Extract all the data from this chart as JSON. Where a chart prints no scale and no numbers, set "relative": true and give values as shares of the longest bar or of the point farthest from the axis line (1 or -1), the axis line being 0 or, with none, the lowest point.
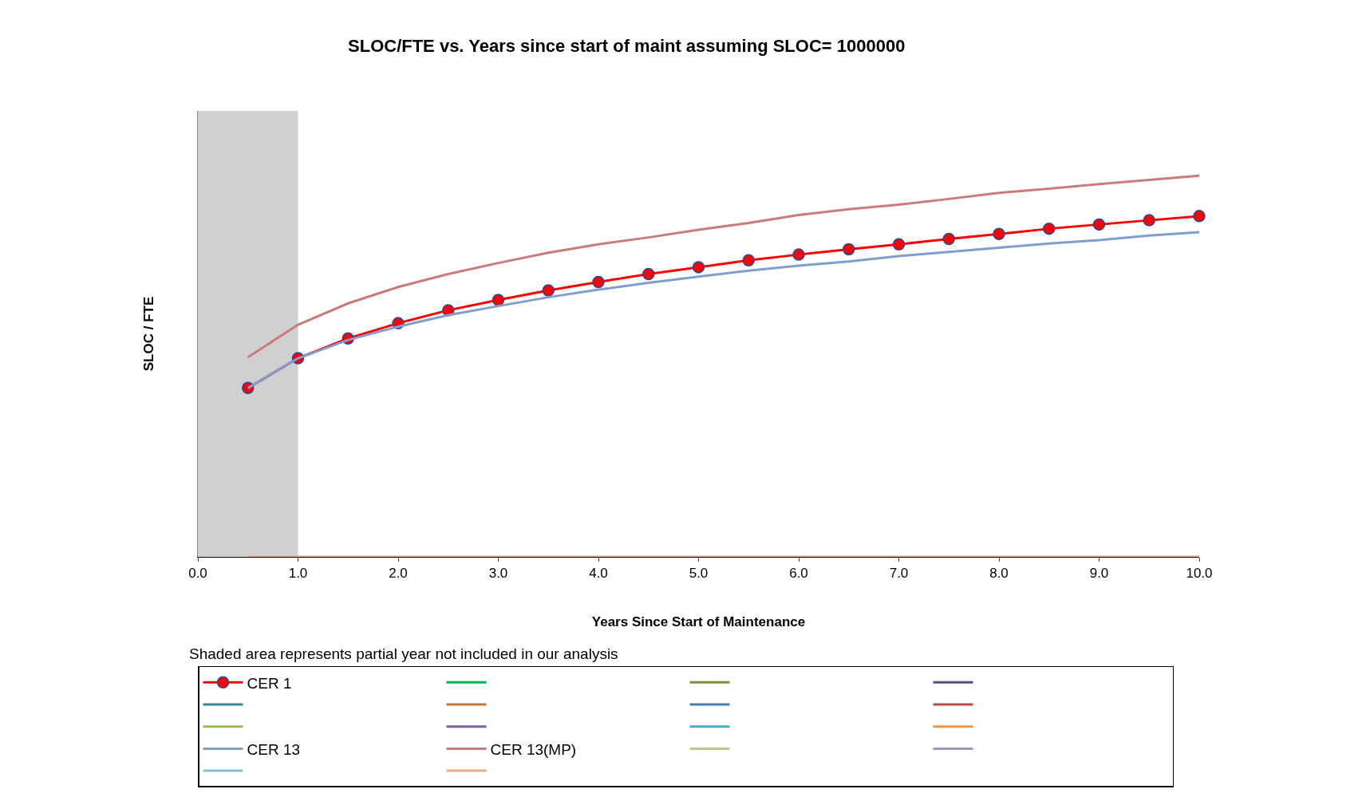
{
  "chart_data": {
    "type": "line",
    "title": "SLOC/FTE vs. Years since start of maint assuming SLOC= 1000000",
    "xlabel": "Years Since Start of Maintenance",
    "ylabel": "SLOC / FTE",
    "annotations": [
      "Shaded area represents partial year not included in our analysis"
    ],
    "relative": true,
    "tick_labels": "x",
    "grid": false,
    "legend": "bottom",
    "x": [
      0.5,
      1.0,
      1.5,
      2.0,
      2.5,
      3.0,
      3.5,
      4.0,
      4.5,
      5.0,
      5.5,
      6.0,
      6.5,
      7.0,
      7.5,
      8.0,
      8.5,
      9.0,
      9.5,
      10.0
    ],
    "xlim": [
      0,
      10
    ],
    "xticks": [
      {
        "value": 0,
        "label": "0.0"
      },
      {
        "value": 1,
        "label": "1.0"
      },
      {
        "value": 2,
        "label": "2.0"
      },
      {
        "value": 3,
        "label": "3.0"
      },
      {
        "value": 4,
        "label": "4.0"
      },
      {
        "value": 5,
        "label": "5.0"
      },
      {
        "value": 6,
        "label": "6.0"
      },
      {
        "value": 7,
        "label": "7.0"
      },
      {
        "value": 8,
        "label": "8.0"
      },
      {
        "value": 9,
        "label": "9.0"
      },
      {
        "value": 10,
        "label": "10.0"
      }
    ],
    "bands": [
      {
        "axis": "x",
        "from": 0,
        "to": 1,
        "color": "#d0d0d0"
      }
    ],
    "series": [
      {
        "name": "CER 1",
        "color": "#ff0000",
        "marker": "circle",
        "values": [
          0.443,
          0.521,
          0.573,
          0.613,
          0.647,
          0.674,
          0.699,
          0.721,
          0.742,
          0.76,
          0.778,
          0.793,
          0.807,
          0.82,
          0.834,
          0.847,
          0.861,
          0.872,
          0.883,
          0.894
        ]
      },
      {
        "color": "#00b050",
        "values": [
          null,
          null,
          null,
          null,
          null,
          null,
          null,
          null,
          null,
          null,
          null,
          null,
          null,
          null,
          null,
          null,
          null,
          null,
          null,
          null
        ]
      },
      {
        "color": "#77933c",
        "values": [
          null,
          null,
          null,
          null,
          null,
          null,
          null,
          null,
          null,
          null,
          null,
          null,
          null,
          null,
          null,
          null,
          null,
          null,
          null,
          null
        ]
      },
      {
        "color": "#604a7b",
        "values": [
          null,
          null,
          null,
          null,
          null,
          null,
          null,
          null,
          null,
          null,
          null,
          null,
          null,
          null,
          null,
          null,
          null,
          null,
          null,
          null
        ]
      },
      {
        "color": "#31859c",
        "values": [
          null,
          null,
          null,
          null,
          null,
          null,
          null,
          null,
          null,
          null,
          null,
          null,
          null,
          null,
          null,
          null,
          null,
          null,
          null,
          null
        ]
      },
      {
        "color": "#c0763a",
        "values": [
          null,
          null,
          null,
          null,
          null,
          null,
          null,
          null,
          null,
          null,
          null,
          null,
          null,
          null,
          null,
          null,
          null,
          null,
          null,
          null
        ]
      },
      {
        "color": "#4a7ebb",
        "values": [
          null,
          null,
          null,
          null,
          null,
          null,
          null,
          null,
          null,
          null,
          null,
          null,
          null,
          null,
          null,
          null,
          null,
          null,
          null,
          null
        ]
      },
      {
        "color": "#be4b48",
        "values": [
          null,
          null,
          null,
          null,
          null,
          null,
          null,
          null,
          null,
          null,
          null,
          null,
          null,
          null,
          null,
          null,
          null,
          null,
          null,
          null
        ]
      },
      {
        "color": "#98b954",
        "values": [
          null,
          null,
          null,
          null,
          null,
          null,
          null,
          null,
          null,
          null,
          null,
          null,
          null,
          null,
          null,
          null,
          null,
          null,
          null,
          null
        ]
      },
      {
        "color": "#7d60a0",
        "values": [
          null,
          null,
          null,
          null,
          null,
          null,
          null,
          null,
          null,
          null,
          null,
          null,
          null,
          null,
          null,
          null,
          null,
          null,
          null,
          null
        ]
      },
      {
        "color": "#46aac5",
        "values": [
          null,
          null,
          null,
          null,
          null,
          null,
          null,
          null,
          null,
          null,
          null,
          null,
          null,
          null,
          null,
          null,
          null,
          null,
          null,
          null
        ]
      },
      {
        "color": "#f69240",
        "values": [
          null,
          null,
          null,
          null,
          null,
          null,
          null,
          null,
          null,
          null,
          null,
          null,
          null,
          null,
          null,
          null,
          null,
          null,
          null,
          null
        ]
      },
      {
        "name": "CER 13",
        "color": "#7f9fcf",
        "values": [
          0.443,
          0.521,
          0.569,
          0.604,
          0.634,
          0.658,
          0.681,
          0.701,
          0.719,
          0.735,
          0.751,
          0.764,
          0.775,
          0.789,
          0.8,
          0.811,
          0.822,
          0.831,
          0.843,
          0.852
        ]
      },
      {
        "name": "CER 13(MP)",
        "color": "#cc7b7b",
        "values": [
          0.524,
          0.609,
          0.665,
          0.708,
          0.742,
          0.771,
          0.798,
          0.82,
          0.838,
          0.858,
          0.876,
          0.897,
          0.912,
          0.924,
          0.939,
          0.955,
          0.966,
          0.978,
          0.989,
          1.0
        ]
      },
      {
        "color": "#b3cf85",
        "values": [
          null,
          null,
          null,
          null,
          null,
          null,
          null,
          null,
          null,
          null,
          null,
          null,
          null,
          null,
          null,
          null,
          null,
          null,
          null,
          null
        ]
      },
      {
        "color": "#a695c2",
        "values": [
          null,
          null,
          null,
          null,
          null,
          null,
          null,
          null,
          null,
          null,
          null,
          null,
          null,
          null,
          null,
          null,
          null,
          null,
          null,
          null
        ]
      },
      {
        "color": "#7fc3d8",
        "values": [
          null,
          null,
          null,
          null,
          null,
          null,
          null,
          null,
          null,
          null,
          null,
          null,
          null,
          null,
          null,
          null,
          null,
          null,
          null,
          null
        ]
      },
      {
        "color": "#f8a877",
        "values": [
          0,
          0,
          0,
          0,
          0,
          0,
          0,
          0,
          0,
          0,
          0,
          0,
          0,
          0,
          0,
          0,
          0,
          0,
          0,
          0
        ]
      }
    ]
  }
}
